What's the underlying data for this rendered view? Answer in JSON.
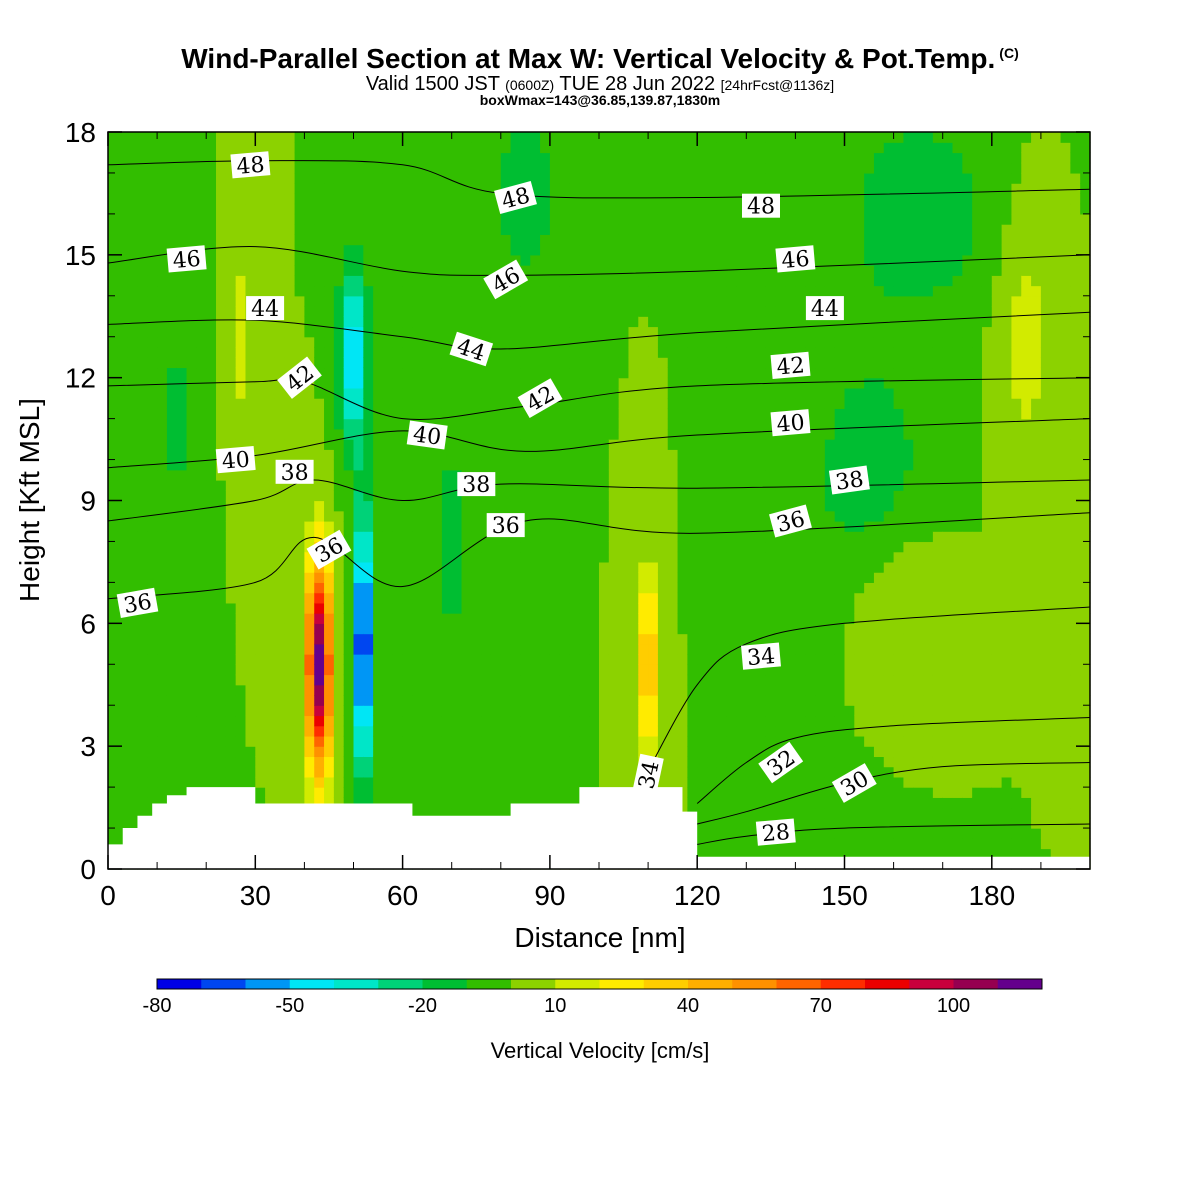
{
  "title": {
    "main": "Wind-Parallel Section at Max W: Vertical Velocity & Pot.Temp.",
    "copyright": "(C)",
    "valid": "Valid 1500 JST",
    "utc": "(0600Z)",
    "date": "TUE 28 Jun 2022",
    "fcst": "[24hrFcst@1136z]",
    "box": "boxWmax=143@36.85,139.87,1830m"
  },
  "chart_data": {
    "type": "heatmap",
    "xlabel": "Distance [nm]",
    "ylabel": "Height [Kft MSL]",
    "xlim": [
      0,
      200
    ],
    "ylim": [
      0,
      18
    ],
    "xticks": [
      0,
      30,
      60,
      90,
      120,
      150,
      180
    ],
    "yticks": [
      0,
      3,
      6,
      9,
      12,
      15,
      18
    ],
    "colorbar": {
      "label": "Vertical Velocity [cm/s]",
      "range": [
        -80,
        120
      ],
      "step": 10,
      "tick_values": [
        -80,
        -50,
        -20,
        10,
        40,
        70,
        100
      ],
      "colors": [
        "#0000e6",
        "#0046f0",
        "#0096f5",
        "#00e6f5",
        "#00e6c8",
        "#00d278",
        "#00be32",
        "#32be00",
        "#8cd200",
        "#d2eb00",
        "#ffeb00",
        "#ffcd00",
        "#ffaf00",
        "#ff9100",
        "#ff6400",
        "#ff2d00",
        "#eb0000",
        "#c8003c",
        "#960050",
        "#64008c"
      ]
    },
    "background_w": 0,
    "features": [
      {
        "name": "updraft core",
        "x": 43,
        "z": 5.0,
        "w": 115,
        "sx": 2.5,
        "sz": 2.6
      },
      {
        "name": "downdraft core",
        "x": 52,
        "z": 5.5,
        "w": -80,
        "sx": 1.9,
        "sz": 3.2
      },
      {
        "name": "downdraft upper",
        "x": 50,
        "z": 12.5,
        "w": -50,
        "sx": 3.0,
        "sz": 2.2
      },
      {
        "name": "updraft secondary",
        "x": 110,
        "z": 5.0,
        "w": 45,
        "sx": 2.0,
        "sz": 2.2
      },
      {
        "name": "weak updraft",
        "x": 27,
        "z": 13.0,
        "w": 15,
        "sx": 3.0,
        "sz": 2.5
      },
      {
        "name": "weak updraft",
        "x": 187,
        "z": 13.0,
        "w": 15,
        "sx": 6.0,
        "sz": 3.0
      },
      {
        "name": "weak updraft",
        "x": 160,
        "z": 7.0,
        "w": 12,
        "sx": 10.0,
        "sz": 2.0
      },
      {
        "name": "weak downdraft",
        "x": 85,
        "z": 16.5,
        "w": -20,
        "sx": 6.0,
        "sz": 2.0
      },
      {
        "name": "weak downdraft",
        "x": 155,
        "z": 9.5,
        "w": -18,
        "sx": 12.0,
        "sz": 3.0
      },
      {
        "name": "weak downdraft",
        "x": 165,
        "z": 16.0,
        "w": -18,
        "sx": 15.0,
        "sz": 2.5
      },
      {
        "name": "weak downdraft",
        "x": 14,
        "z": 11.0,
        "w": -12,
        "sx": 5.0,
        "sz": 3.0
      },
      {
        "name": "weak downdraft",
        "x": 70,
        "z": 8.0,
        "w": -15,
        "sx": 4.0,
        "sz": 3.0
      }
    ],
    "terrain": {
      "x": [
        0,
        3,
        6,
        9,
        12,
        16,
        29,
        30,
        58,
        62,
        78,
        82,
        92,
        96,
        114,
        117,
        120,
        200
      ],
      "z": [
        0.6,
        1.0,
        1.3,
        1.6,
        1.8,
        2.0,
        2.0,
        1.6,
        1.6,
        1.3,
        1.3,
        1.6,
        1.6,
        2.0,
        2.0,
        1.4,
        0.3,
        0.3
      ]
    },
    "contour_levels": [
      28,
      30,
      32,
      34,
      36,
      38,
      40,
      42,
      44,
      46,
      48
    ],
    "theta_contours": [
      {
        "level": 48,
        "x": [
          0,
          30,
          60,
          80,
          120,
          200
        ],
        "z": [
          17.2,
          17.3,
          17.2,
          16.5,
          16.4,
          16.6
        ]
      },
      {
        "level": 46,
        "x": [
          0,
          30,
          60,
          80,
          120,
          200
        ],
        "z": [
          14.8,
          15.2,
          14.6,
          14.5,
          14.6,
          15.0
        ]
      },
      {
        "level": 44,
        "x": [
          0,
          30,
          60,
          80,
          120,
          200
        ],
        "z": [
          13.3,
          13.4,
          13.0,
          12.7,
          13.1,
          13.6
        ]
      },
      {
        "level": 42,
        "x": [
          0,
          30,
          40,
          60,
          85,
          120,
          200
        ],
        "z": [
          11.8,
          11.9,
          11.9,
          11.0,
          11.3,
          11.8,
          12.0
        ]
      },
      {
        "level": 40,
        "x": [
          0,
          30,
          60,
          85,
          120,
          200
        ],
        "z": [
          9.8,
          10.1,
          10.7,
          10.2,
          10.6,
          11.0
        ]
      },
      {
        "level": 38,
        "x": [
          0,
          30,
          42,
          60,
          80,
          120,
          200
        ],
        "z": [
          8.5,
          9.0,
          9.5,
          9.0,
          9.4,
          9.3,
          9.5
        ]
      },
      {
        "level": 36,
        "x": [
          0,
          30,
          42,
          60,
          85,
          120,
          200
        ],
        "z": [
          6.6,
          7.0,
          8.1,
          6.9,
          8.5,
          8.2,
          8.7
        ]
      },
      {
        "level": 34,
        "x": [
          110,
          120,
          130,
          150,
          200
        ],
        "z": [
          2.4,
          4.5,
          5.5,
          6.0,
          6.4
        ]
      },
      {
        "level": 32,
        "x": [
          120,
          130,
          140,
          160,
          200
        ],
        "z": [
          1.6,
          2.6,
          3.2,
          3.5,
          3.7
        ]
      },
      {
        "level": 30,
        "x": [
          120,
          130,
          150,
          170,
          200
        ],
        "z": [
          1.1,
          1.4,
          2.1,
          2.5,
          2.6
        ]
      },
      {
        "level": 28,
        "x": [
          120,
          130,
          150,
          200
        ],
        "z": [
          0.6,
          0.8,
          1.0,
          1.1
        ]
      }
    ],
    "contour_labels": [
      {
        "text": "48",
        "x": 29,
        "z": 17.2,
        "angle": -5
      },
      {
        "text": "48",
        "x": 83,
        "z": 16.4,
        "angle": -15
      },
      {
        "text": "48",
        "x": 133,
        "z": 16.2,
        "angle": 0
      },
      {
        "text": "46",
        "x": 16,
        "z": 14.9,
        "angle": -5
      },
      {
        "text": "46",
        "x": 81,
        "z": 14.4,
        "angle": -30
      },
      {
        "text": "46",
        "x": 140,
        "z": 14.9,
        "angle": -5
      },
      {
        "text": "44",
        "x": 32,
        "z": 13.7,
        "angle": 0
      },
      {
        "text": "44",
        "x": 74,
        "z": 12.7,
        "angle": 18
      },
      {
        "text": "44",
        "x": 146,
        "z": 13.7,
        "angle": 0
      },
      {
        "text": "42",
        "x": 39,
        "z": 12.0,
        "angle": -38
      },
      {
        "text": "42",
        "x": 88,
        "z": 11.5,
        "angle": -30
      },
      {
        "text": "42",
        "x": 139,
        "z": 12.3,
        "angle": -5
      },
      {
        "text": "40",
        "x": 26,
        "z": 10.0,
        "angle": -5
      },
      {
        "text": "40",
        "x": 65,
        "z": 10.6,
        "angle": 8
      },
      {
        "text": "40",
        "x": 139,
        "z": 10.9,
        "angle": -5
      },
      {
        "text": "38",
        "x": 38,
        "z": 9.7,
        "angle": 0
      },
      {
        "text": "38",
        "x": 75,
        "z": 9.4,
        "angle": 0
      },
      {
        "text": "38",
        "x": 151,
        "z": 9.5,
        "angle": -8
      },
      {
        "text": "36",
        "x": 6,
        "z": 6.5,
        "angle": -10
      },
      {
        "text": "36",
        "x": 45,
        "z": 7.8,
        "angle": -30
      },
      {
        "text": "36",
        "x": 81,
        "z": 8.4,
        "angle": 0
      },
      {
        "text": "36",
        "x": 139,
        "z": 8.5,
        "angle": -15
      },
      {
        "text": "34",
        "x": 110,
        "z": 2.3,
        "angle": -78
      },
      {
        "text": "34",
        "x": 133,
        "z": 5.2,
        "angle": -5
      },
      {
        "text": "32",
        "x": 137,
        "z": 2.6,
        "angle": -35
      },
      {
        "text": "30",
        "x": 152,
        "z": 2.1,
        "angle": -30
      },
      {
        "text": "28",
        "x": 136,
        "z": 0.9,
        "angle": -5
      }
    ]
  }
}
